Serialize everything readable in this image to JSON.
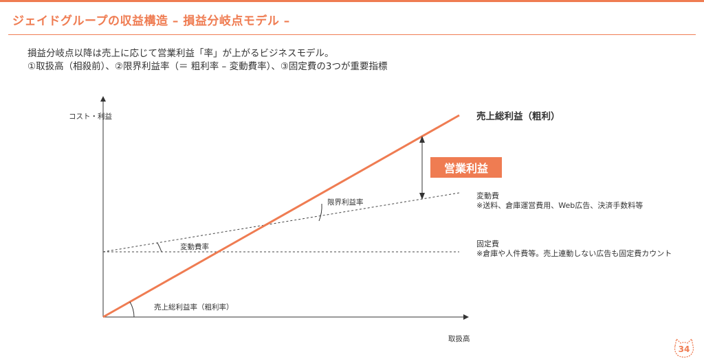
{
  "header": {
    "title": "ジェイドグループの収益構造 – 損益分岐点モデル –",
    "accent_color": "#ef7c52"
  },
  "lead": {
    "line1": "損益分岐点以降は売上に応じて営業利益「率」が上がるビジネスモデル。",
    "line2": "①取扱高（相殺前）、②限界利益率（＝ 粗利率 – 変動費率）、③固定費の3つが重要指標"
  },
  "diagram": {
    "y_axis_label": "コスト・利益",
    "x_axis_label": "取扱高",
    "gross_profit_label": "売上総利益（粗利）",
    "operating_profit_badge": "営業利益",
    "variable_cost_title": "変動費",
    "variable_cost_note": "※送料、倉庫運営費用、Web広告、決済手数料等",
    "fixed_cost_title": "固定費",
    "fixed_cost_note": "※倉庫や人件費等。売上連動しない広告も固定費カウント",
    "marginal_profit_rate_label": "限界利益率",
    "variable_cost_rate_label": "変動費率",
    "gross_margin_rate_label": "売上総利益率（粗利率）",
    "line_color": "#ef7c52"
  },
  "footer": {
    "page_number": "34",
    "mascot_icon": "cat-icon"
  }
}
